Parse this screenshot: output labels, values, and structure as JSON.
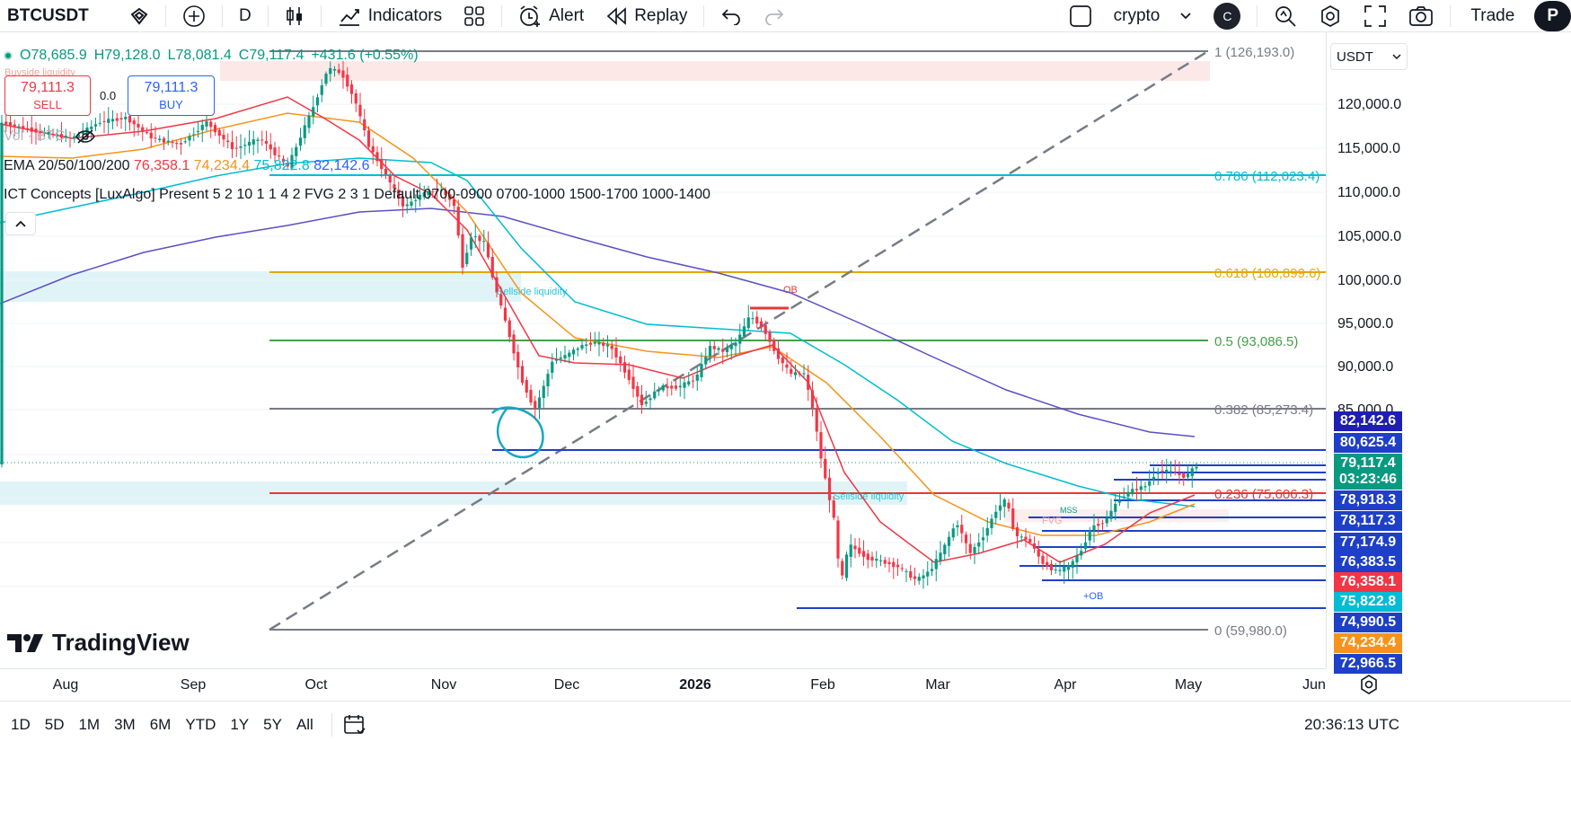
{
  "toolbar": {
    "symbol": "BTCUSDT",
    "interval": "D",
    "indicators_label": "Indicators",
    "alert_label": "Alert",
    "replay_label": "Replay",
    "layout_name": "crypto",
    "avatar_letter": "C",
    "trade_label": "Trade",
    "publish_label": "P"
  },
  "legend": {
    "ohlc": {
      "o": "O78,685.9",
      "h": "H79,128.0",
      "l": "L78,081.4",
      "c": "C79,117.4",
      "change": "+431.6 (+0.55%)"
    },
    "sell_price": "79,111.3",
    "sell_label": "SELL",
    "buy_price": "79,111.3",
    "buy_label": "BUY",
    "spread": "0.0",
    "vol_label": "Vol · BTC",
    "ema_label": "EMA 20/50/100/200",
    "ema_values": [
      "76,358.1",
      "74,234.4",
      "75,822.8",
      "82,142.6"
    ],
    "ict_label": "ICT Concepts [LuxAlgo] Present 5 2 10 1 1 4 2 FVG 2 3 1 Default 0700-0900 0700-1000 1500-1700 1000-1400"
  },
  "price_scale": {
    "currency": "USDT",
    "ticks": [
      "120,000.0",
      "115,000.0",
      "110,000.0",
      "105,000.0",
      "100,000.0",
      "95,000.0",
      "90,000.0",
      "85,000.0"
    ],
    "labels": [
      {
        "text": "82,142.6",
        "color": "#1e1eb4"
      },
      {
        "text": "80,625.4",
        "color": "#1e40c8"
      },
      {
        "text": "79,117.4",
        "color": "#089981"
      },
      {
        "text": "03:23:46",
        "color": "#089981"
      },
      {
        "text": "78,918.3",
        "color": "#1e40c8"
      },
      {
        "text": "78,117.3",
        "color": "#1e40c8"
      },
      {
        "text": "77,174.9",
        "color": "#1e40c8"
      },
      {
        "text": "76,383.5",
        "color": "#1e40c8"
      },
      {
        "text": "76,358.1",
        "color": "#f23645"
      },
      {
        "text": "75,822.8",
        "color": "#00bcd4"
      },
      {
        "text": "74,990.5",
        "color": "#1e40c8"
      },
      {
        "text": "74,234.4",
        "color": "#f7931a"
      },
      {
        "text": "72,966.5",
        "color": "#1e40c8"
      }
    ]
  },
  "fib": {
    "levels": [
      {
        "text": "1 (126,193.0)",
        "color": "#787b86"
      },
      {
        "text": "0.786 (112,023.4)",
        "color": "#00bcd4"
      },
      {
        "text": "0.618 (100,899.6)",
        "color": "#e5a800"
      },
      {
        "text": "0.5 (93,086.5)",
        "color": "#43a047"
      },
      {
        "text": "0.382 (85,273.4)",
        "color": "#787b86"
      },
      {
        "text": "0.236 (75,606.3)",
        "color": "#e53935"
      },
      {
        "text": "0 (59,980.0)",
        "color": "#787b86"
      }
    ]
  },
  "annotations": {
    "ob": "OB",
    "plus_ob": "+OB",
    "sellside_1": "Sellside liquidity",
    "sellside_2": "Sellside liquidity",
    "buyside": "Buyside liquidity",
    "mss": "MSS",
    "fvg": "FVG"
  },
  "time_axis": {
    "labels": [
      {
        "text": "Aug",
        "bold": false
      },
      {
        "text": "Sep",
        "bold": false
      },
      {
        "text": "Oct",
        "bold": false
      },
      {
        "text": "Nov",
        "bold": false
      },
      {
        "text": "Dec",
        "bold": false
      },
      {
        "text": "2026",
        "bold": true
      },
      {
        "text": "Feb",
        "bold": false
      },
      {
        "text": "Mar",
        "bold": false
      },
      {
        "text": "Apr",
        "bold": false
      },
      {
        "text": "May",
        "bold": false
      },
      {
        "text": "Jun",
        "bold": false
      }
    ]
  },
  "logo_text": "TradingView",
  "bottom": {
    "ranges": [
      "1D",
      "5D",
      "1M",
      "3M",
      "6M",
      "YTD",
      "1Y",
      "5Y",
      "All"
    ],
    "clock": "20:36:13 UTC"
  },
  "colors": {
    "up": "#089981",
    "down": "#f23645",
    "ema20": "#f23645",
    "ema50": "#f7931a",
    "ema100": "#00bcd4",
    "ema200": "#5b4fc4"
  }
}
